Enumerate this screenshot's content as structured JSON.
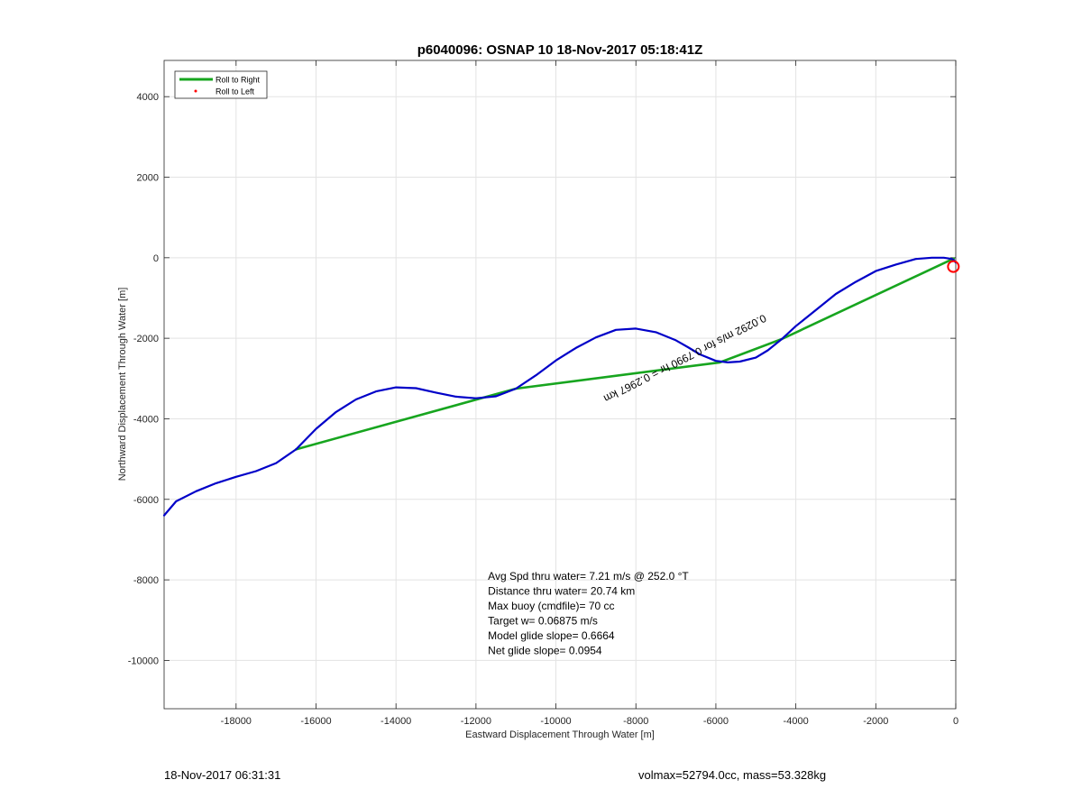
{
  "chart_data": {
    "type": "line",
    "title": "p6040096: OSNAP 10 18-Nov-2017 05:18:41Z",
    "xlabel": "Eastward Displacement Through Water [m]",
    "ylabel": "Northward Displacement Through Water [m]",
    "xlim": [
      -19800,
      0
    ],
    "ylim": [
      -11200,
      4900
    ],
    "xticks": [
      -18000,
      -16000,
      -14000,
      -12000,
      -10000,
      -8000,
      -6000,
      -4000,
      -2000,
      0
    ],
    "yticks": [
      4000,
      2000,
      0,
      -2000,
      -4000,
      -6000,
      -8000,
      -10000
    ],
    "xticklabels": [
      "-18000",
      "-16000",
      "-14000",
      "-12000",
      "-10000",
      "-8000",
      "-6000",
      "-4000",
      "-2000",
      "0"
    ],
    "yticklabels": [
      "4000",
      "2000",
      "0",
      "-2000",
      "-4000",
      "-6000",
      "-8000",
      "-10000"
    ],
    "grid": true,
    "legend": {
      "placement": "top-left",
      "entries": [
        {
          "label": "Roll to Right",
          "color": "#17a51f",
          "marker": "line"
        },
        {
          "label": "Roll to Left",
          "color": "#ff0000",
          "marker": "dot"
        }
      ]
    },
    "series": [
      {
        "name": "Roll to Right",
        "color": "#17a51f",
        "x": [
          -50,
          -4350,
          -5900,
          -11000,
          -16500
        ],
        "y": [
          -20,
          -2020,
          -2600,
          -3250,
          -4760
        ]
      },
      {
        "color": "#0000c8",
        "x": [
          0,
          -50,
          -100,
          -300,
          -600,
          -1000,
          -1500,
          -2000,
          -2500,
          -3000,
          -3500,
          -4000,
          -4350,
          -4700,
          -5000,
          -5400,
          -5700,
          -6000,
          -6400,
          -6700,
          -7000,
          -7500,
          -8000,
          -8500,
          -9000,
          -9500,
          -10000,
          -10500,
          -11000,
          -11500,
          -12000,
          -12500,
          -13000,
          -13500,
          -14000,
          -14500,
          -15000,
          -15500,
          -16000,
          -16500,
          -17000,
          -17500,
          -18000,
          -18500,
          -19000,
          -19500,
          -19800
        ],
        "y": [
          -120,
          -60,
          -30,
          0,
          0,
          -30,
          -170,
          -330,
          -600,
          -900,
          -1300,
          -1700,
          -2020,
          -2300,
          -2480,
          -2580,
          -2600,
          -2560,
          -2400,
          -2220,
          -2050,
          -1850,
          -1760,
          -1790,
          -1980,
          -2240,
          -2550,
          -2920,
          -3250,
          -3440,
          -3490,
          -3450,
          -3350,
          -3240,
          -3220,
          -3320,
          -3520,
          -3830,
          -4250,
          -4760,
          -5100,
          -5300,
          -5440,
          -5600,
          -5800,
          -6050,
          -6400
        ]
      }
    ],
    "markers": [
      {
        "type": "circle",
        "x": -60,
        "y": -220,
        "color": "#ff0000"
      }
    ],
    "annotation": {
      "text": "0.0292 m/s for 0.7990 hr = 0.2967 km",
      "anchor_x": -4800,
      "anchor_y": -1400,
      "rotation_deg": 153,
      "color": "#000000"
    },
    "stats": [
      "Avg Spd thru water=  7.21 m/s @ 252.0 °T",
      "Distance thru water= 20.74 km",
      "Max buoy (cmdfile)= 70 cc",
      "Target w= 0.06875 m/s",
      "Model glide slope= 0.6664",
      "Net glide slope= 0.0954"
    ],
    "stats_anchor": {
      "x": -11700,
      "y": -8000
    }
  },
  "footer": {
    "left": "18-Nov-2017 06:31:31",
    "right": "volmax=52794.0cc, mass=53.328kg"
  }
}
